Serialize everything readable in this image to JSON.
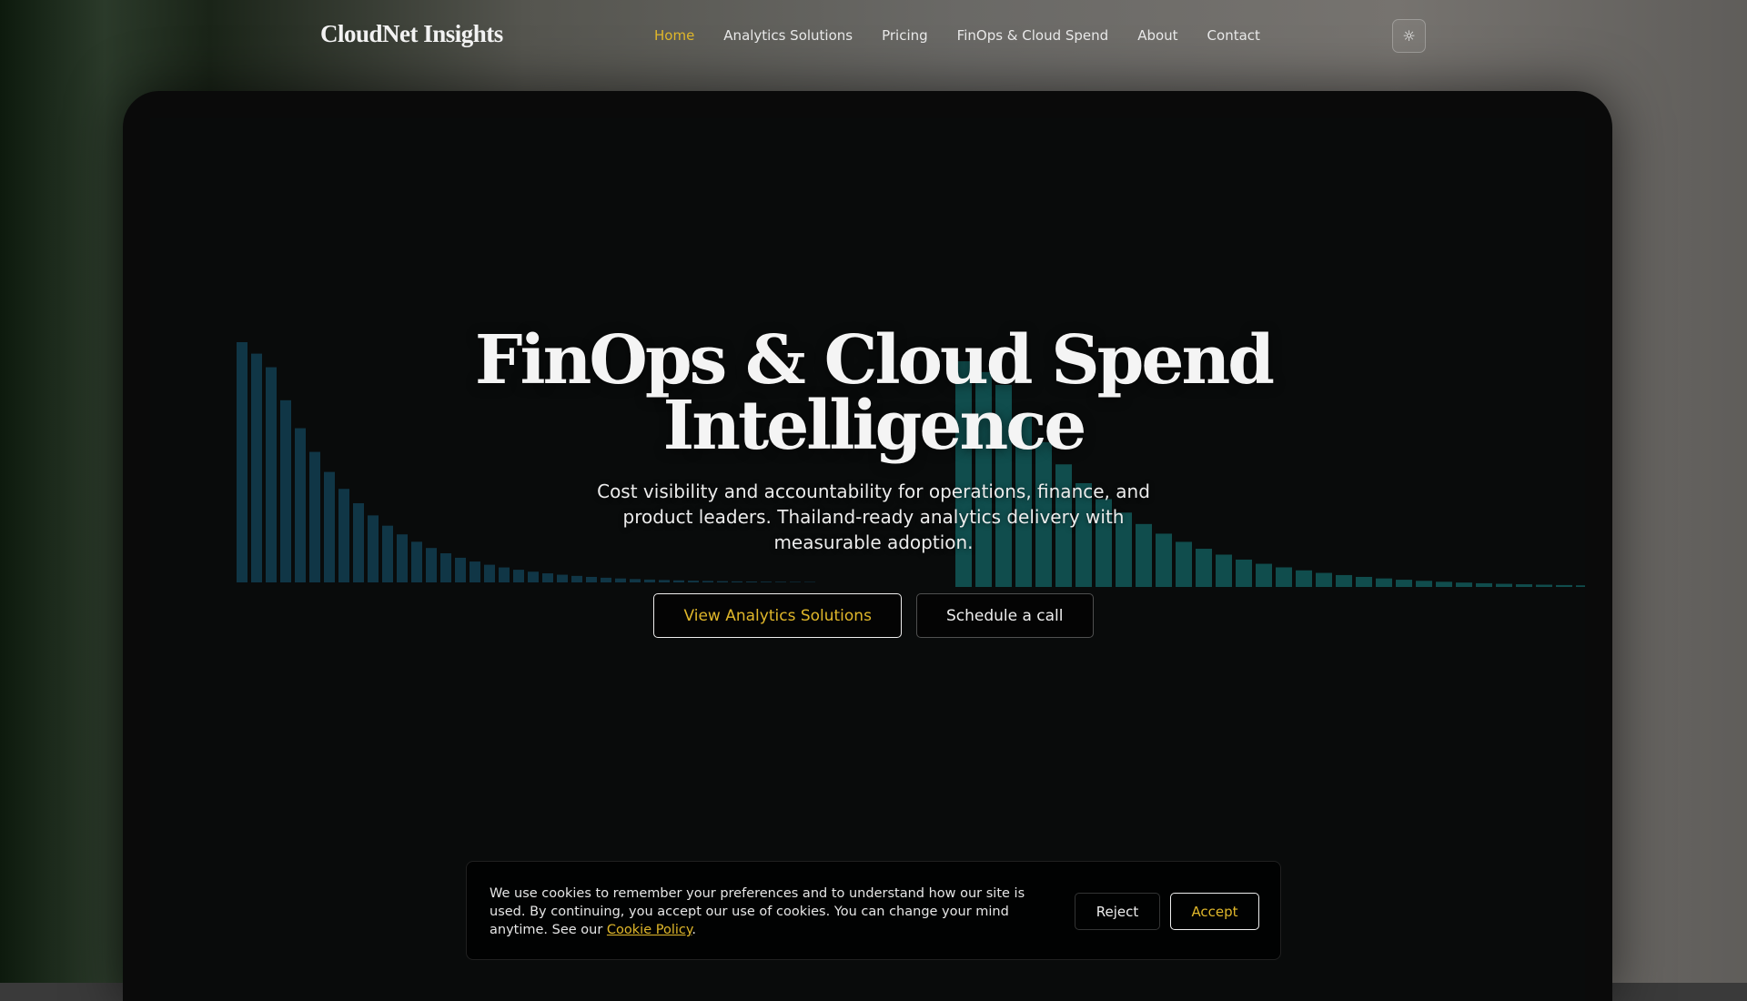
{
  "brand": "CloudNet Insights",
  "nav": {
    "items": [
      {
        "label": "Home",
        "active": true
      },
      {
        "label": "Analytics Solutions"
      },
      {
        "label": "Pricing"
      },
      {
        "label": "FinOps & Cloud Spend"
      },
      {
        "label": "About"
      },
      {
        "label": "Contact"
      }
    ],
    "theme_icon": "sun-icon"
  },
  "hero": {
    "title_line1": "FinOps & Cloud Spend",
    "title_line2": "Intelligence",
    "subtitle": "Cost visibility and accountability for operations, finance, and product leaders. Thailand-ready analytics delivery with measurable adoption.",
    "primary_cta": "View Analytics Solutions",
    "secondary_cta": "Schedule a call"
  },
  "cookie": {
    "text": "We use cookies to remember your preferences and to understand how our site is used. By continuing, you accept our use of cookies. You can change your mind anytime. See our ",
    "link": "Cookie Policy",
    "end": ".",
    "reject": "Reject",
    "accept": "Accept"
  },
  "colors": {
    "accent": "#e0b72a",
    "bars_left": "#1f6f93",
    "bars_right": "#1fa3a3"
  }
}
